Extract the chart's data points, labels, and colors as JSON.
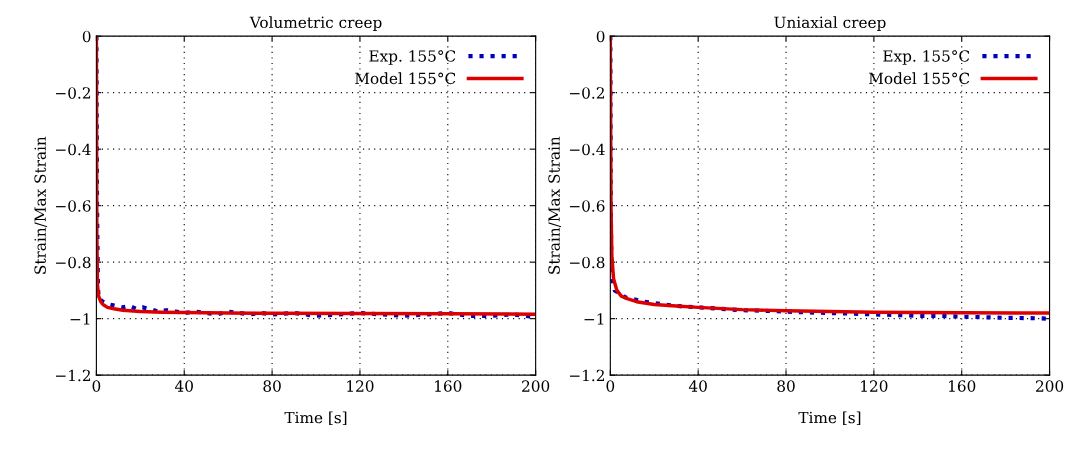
{
  "chart_data": [
    {
      "type": "line",
      "title": "Volumetric creep",
      "xlabel": "Time [s]",
      "ylabel": "Strain/Max Strain",
      "xlim": [
        0,
        200
      ],
      "ylim": [
        -1.2,
        0
      ],
      "xticks": [
        0,
        40,
        80,
        120,
        160,
        200
      ],
      "yticks": [
        -1.2,
        -1,
        -0.8,
        -0.6,
        -0.4,
        -0.2,
        0
      ],
      "grid": true,
      "legend": "top right",
      "series": [
        {
          "name": "Exp. 155°C",
          "color": "#0000bb",
          "line_style": "dotted",
          "x": [
            0,
            0.3,
            0.7,
            1,
            3,
            6,
            9,
            12,
            15,
            18,
            21,
            24,
            28,
            32,
            36,
            40,
            45,
            50,
            55,
            60,
            65,
            70,
            75,
            80,
            90,
            100,
            110,
            120,
            130,
            140,
            150,
            160,
            170,
            180,
            190,
            200
          ],
          "values": [
            0,
            -0.6,
            -0.88,
            -0.93,
            -0.94,
            -0.95,
            -0.955,
            -0.96,
            -0.955,
            -0.965,
            -0.96,
            -0.965,
            -0.975,
            -0.97,
            -0.975,
            -0.98,
            -0.975,
            -0.98,
            -0.985,
            -0.975,
            -0.98,
            -0.985,
            -0.98,
            -0.985,
            -0.98,
            -0.99,
            -0.985,
            -0.98,
            -0.985,
            -0.99,
            -0.985,
            -0.98,
            -0.99,
            -0.99,
            -0.985,
            -0.995
          ]
        },
        {
          "name": "Model 155°C",
          "color": "#dd0000",
          "line_style": "solid",
          "x": [
            0,
            0.2,
            0.5,
            1,
            2,
            3,
            5,
            8,
            12,
            20,
            30,
            40,
            60,
            80,
            120,
            160,
            200
          ],
          "values": [
            0,
            -0.7,
            -0.88,
            -0.92,
            -0.94,
            -0.95,
            -0.96,
            -0.965,
            -0.97,
            -0.975,
            -0.977,
            -0.978,
            -0.98,
            -0.981,
            -0.982,
            -0.983,
            -0.984
          ]
        }
      ]
    },
    {
      "type": "line",
      "title": "Uniaxial creep",
      "xlabel": "Time [s]",
      "ylabel": "Strain/Max Strain",
      "xlim": [
        0,
        200
      ],
      "ylim": [
        -1.2,
        0
      ],
      "xticks": [
        0,
        40,
        80,
        120,
        160,
        200
      ],
      "yticks": [
        -1.2,
        -1,
        -0.8,
        -0.6,
        -0.4,
        -0.2,
        0
      ],
      "grid": true,
      "legend": "top right",
      "series": [
        {
          "name": "Exp. 155°C",
          "color": "#0000bb",
          "line_style": "dotted",
          "x": [
            0,
            0.2,
            0.5,
            1,
            2,
            4,
            7,
            10,
            15,
            20,
            30,
            40,
            50,
            60,
            70,
            80,
            90,
            100,
            110,
            120,
            130,
            140,
            150,
            160,
            170,
            180,
            190,
            200
          ],
          "values": [
            0,
            -0.6,
            -0.82,
            -0.86,
            -0.9,
            -0.91,
            -0.925,
            -0.93,
            -0.94,
            -0.945,
            -0.955,
            -0.96,
            -0.965,
            -0.97,
            -0.972,
            -0.975,
            -0.978,
            -0.98,
            -0.982,
            -0.985,
            -0.987,
            -0.99,
            -0.99,
            -0.993,
            -0.995,
            -0.997,
            -0.998,
            -1.0
          ]
        },
        {
          "name": "Model 155°C",
          "color": "#dd0000",
          "line_style": "solid",
          "x": [
            0,
            0.3,
            0.7,
            1.5,
            3,
            5,
            8,
            12,
            20,
            30,
            40,
            60,
            80,
            100,
            120,
            160,
            200
          ],
          "values": [
            0,
            -0.6,
            -0.78,
            -0.86,
            -0.9,
            -0.92,
            -0.93,
            -0.94,
            -0.95,
            -0.955,
            -0.96,
            -0.968,
            -0.972,
            -0.975,
            -0.977,
            -0.979,
            -0.98
          ]
        }
      ]
    }
  ]
}
